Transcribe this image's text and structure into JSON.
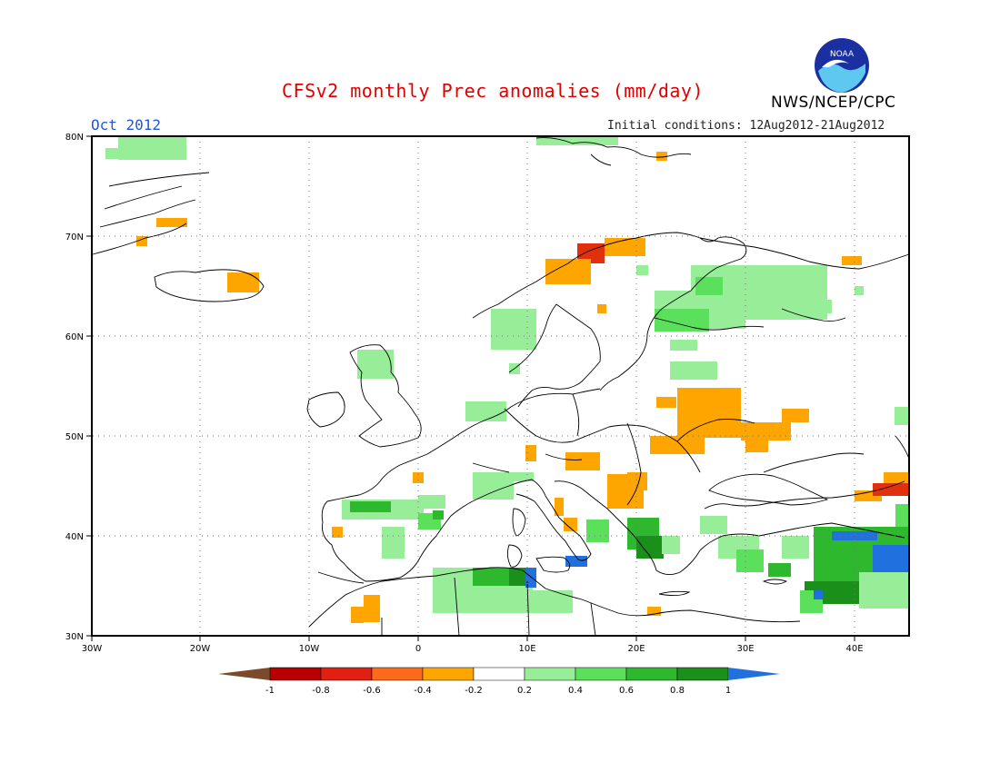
{
  "header": {
    "title": "CFSv2 monthly Prec anomalies (mm/day)",
    "month": "Oct 2012",
    "initial_conditions": "Initial conditions: 12Aug2012-21Aug2012",
    "agency": "NWS/NCEP/CPC",
    "logo_text": "NOAA"
  },
  "map": {
    "lat_labels": [
      "80N",
      "70N",
      "60N",
      "50N",
      "40N",
      "30N"
    ],
    "lon_labels": [
      "30W",
      "20W",
      "10W",
      "0",
      "10E",
      "20E",
      "30E",
      "40E"
    ],
    "grid": "dotted"
  },
  "colorbar": {
    "tick_labels": [
      "-1",
      "-0.8",
      "-0.6",
      "-0.4",
      "-0.2",
      "0.2",
      "0.4",
      "0.6",
      "0.8",
      "1"
    ],
    "colors": [
      "#7a4a2a",
      "#b80000",
      "#e02010",
      "#ff6a1a",
      "#ffa500",
      "#ffffff",
      "#98ee98",
      "#5ae05a",
      "#2eb82e",
      "#1a8f1a",
      "#2070e0"
    ]
  },
  "anomaly_colors": {
    "orange": "#ffa500",
    "red": "#e0300e",
    "light_green": "#98ee98",
    "green": "#5ae05a",
    "mid_green": "#2eb82e",
    "dark_green": "#1a8f1a",
    "blue": "#2070e0"
  }
}
